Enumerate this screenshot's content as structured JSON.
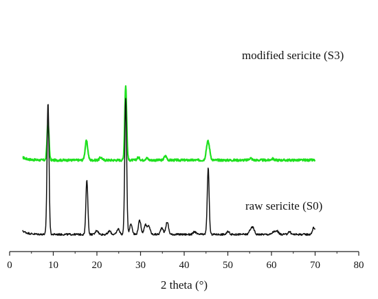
{
  "chart_data": {
    "type": "line",
    "xlabel": "2 theta (°)",
    "ylabel": "",
    "xlim": [
      0,
      80
    ],
    "x_ticks": [
      0,
      10,
      20,
      30,
      40,
      50,
      60,
      70,
      80
    ],
    "y_axis_visible": false,
    "grid": false,
    "legend": "none",
    "series": [
      {
        "name": "modified sericite (S3)",
        "color": "#1fe01f",
        "baseline": 108,
        "peaks": [
          [
            8.8,
            55
          ],
          [
            17.6,
            28
          ],
          [
            20.9,
            4
          ],
          [
            26.6,
            108
          ],
          [
            29.5,
            4
          ],
          [
            31.4,
            3
          ],
          [
            35.7,
            6
          ],
          [
            45.3,
            20
          ],
          [
            45.7,
            14
          ],
          [
            55.2,
            3
          ],
          [
            60.2,
            2
          ]
        ],
        "noise": 1.6,
        "start_bump": 4,
        "x_range": [
          3,
          70
        ]
      },
      {
        "name": "raw sericite (S0)",
        "color": "#111111",
        "baseline": 0,
        "peaks": [
          [
            8.8,
            192
          ],
          [
            17.7,
            80
          ],
          [
            20.0,
            6
          ],
          [
            22.9,
            5
          ],
          [
            24.9,
            8
          ],
          [
            26.6,
            198
          ],
          [
            27.8,
            15
          ],
          [
            29.8,
            20
          ],
          [
            31.1,
            14
          ],
          [
            31.9,
            12
          ],
          [
            34.9,
            10
          ],
          [
            36.1,
            18
          ],
          [
            42.4,
            4
          ],
          [
            45.5,
            96
          ],
          [
            50.1,
            4
          ],
          [
            55.2,
            7
          ],
          [
            55.8,
            9
          ],
          [
            60.5,
            4
          ],
          [
            61.3,
            5
          ],
          [
            64.1,
            4
          ],
          [
            69.7,
            10
          ]
        ],
        "noise": 1.4,
        "start_bump": 5,
        "x_range": [
          3,
          70
        ]
      }
    ]
  }
}
